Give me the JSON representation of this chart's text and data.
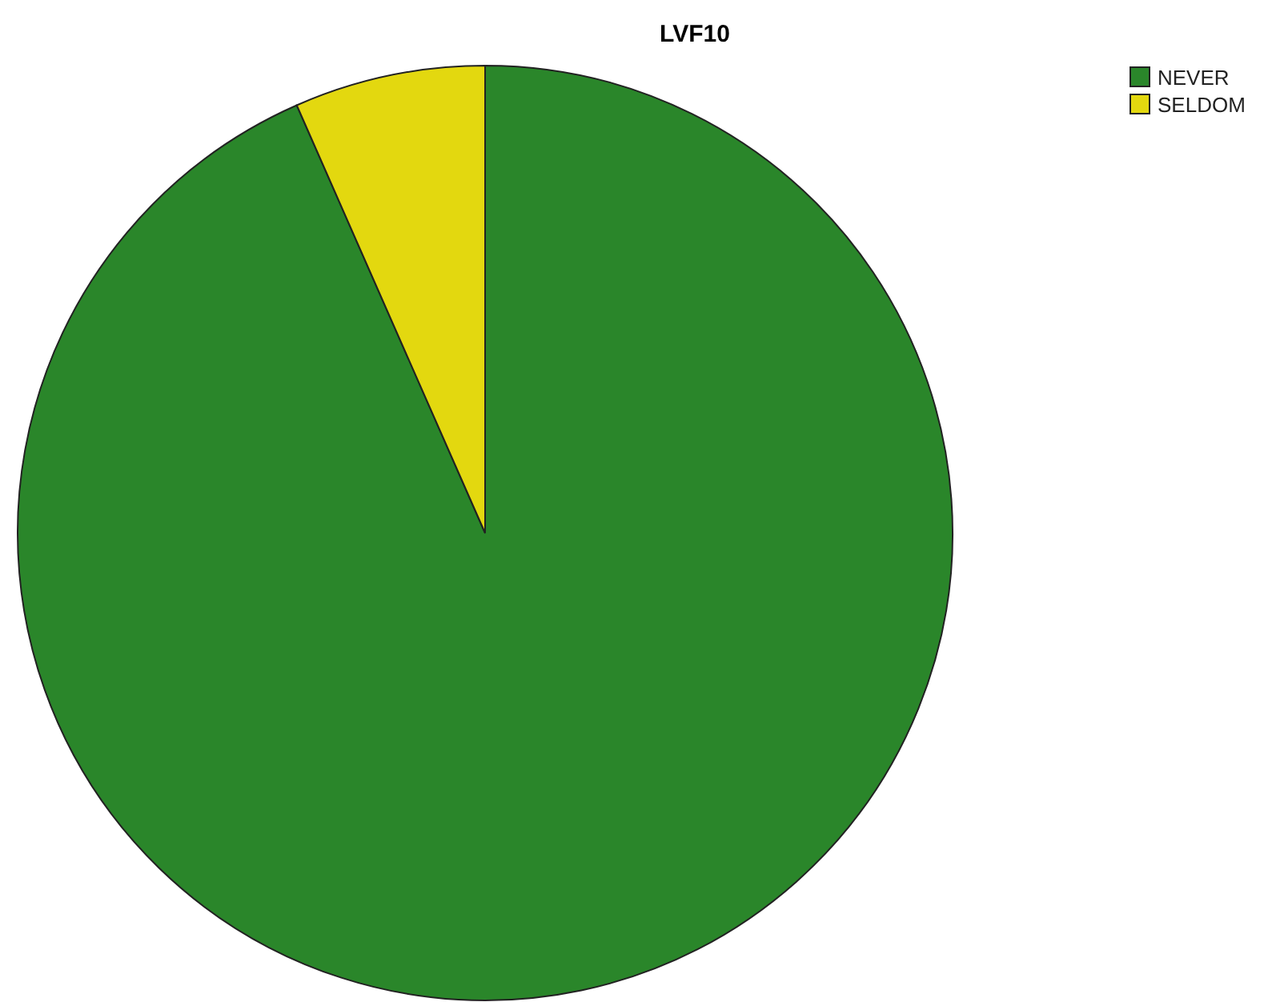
{
  "chart_data": {
    "type": "pie",
    "title": "LVF10",
    "categories": [
      "NEVER",
      "SELDOM"
    ],
    "values": [
      93.4,
      6.6
    ],
    "colors": [
      "#2a862a",
      "#e3d80f"
    ],
    "legend": "top right"
  }
}
